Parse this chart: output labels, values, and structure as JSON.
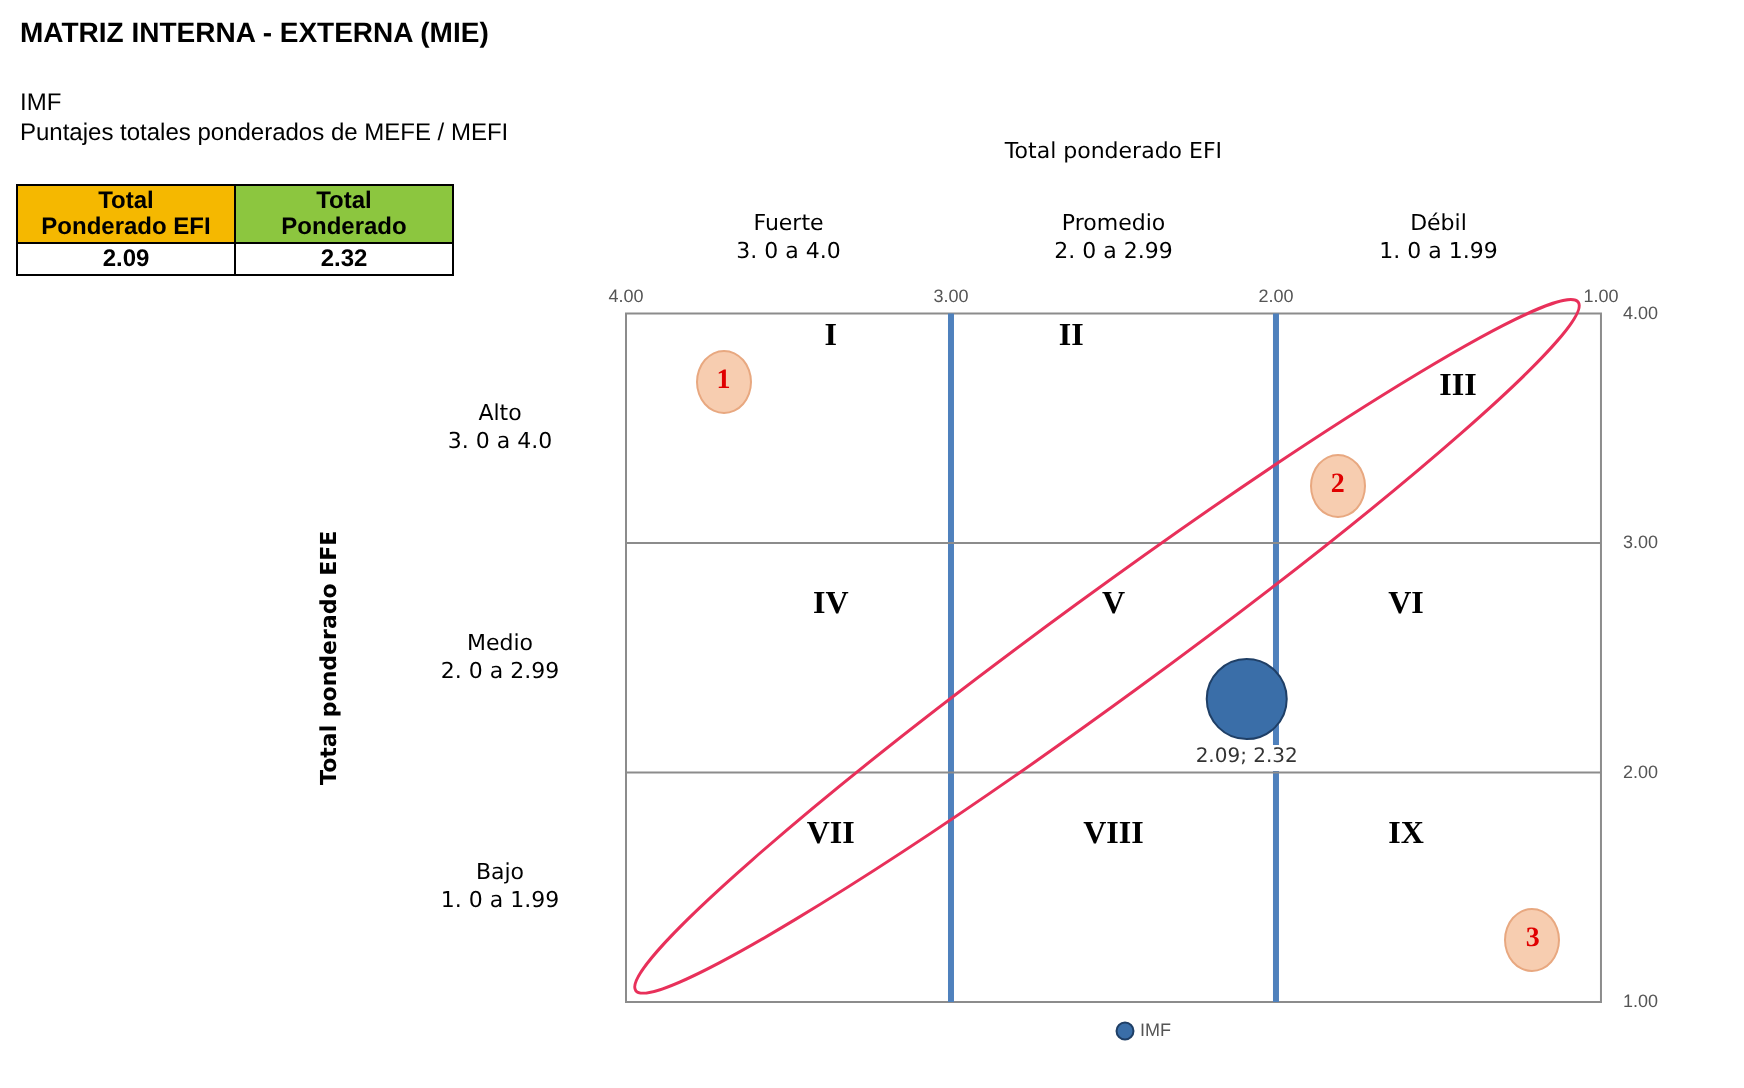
{
  "chart_data": {
    "type": "bubble",
    "title": "MATRIZ INTERNA - EXTERNA (MIE)",
    "subtitle": "IMF\nPuntajes totales ponderados de MEFE / MEFI",
    "series": [
      {
        "name": "IMF",
        "color": "#3a6ea8",
        "x": [
          2.09
        ],
        "values": [
          2.32
        ],
        "sizes": [
          1
        ],
        "value_labels": [
          "2.09; 2.32"
        ]
      }
    ],
    "xlim": [
      4,
      1
    ],
    "xticks": [
      {
        "value": 4,
        "label": "4.00"
      },
      {
        "value": 3,
        "label": "3.00"
      },
      {
        "value": 2,
        "label": "2.00"
      },
      {
        "value": 1,
        "label": "1.00"
      }
    ],
    "ylim": [
      1,
      4
    ],
    "yticks": [
      {
        "value": 1,
        "label": "1.00"
      },
      {
        "value": 2,
        "label": "2.00"
      },
      {
        "value": 3,
        "label": "3.00"
      },
      {
        "value": 4,
        "label": "4.00"
      }
    ],
    "ref_lines": [
      {
        "axis": "x",
        "value": 3,
        "color": "#4f81bd"
      },
      {
        "axis": "x",
        "value": 2,
        "color": "#4f81bd"
      },
      {
        "axis": "y",
        "value": 3,
        "color": "#8c8c8c"
      },
      {
        "axis": "y",
        "value": 2,
        "color": "#8c8c8c"
      }
    ],
    "annotations": [
      "I",
      "II",
      "III",
      "IV",
      "V",
      "VI",
      "VII",
      "VIII",
      "IX",
      "1",
      "2",
      "3",
      "Fuerte\n3. 0 a 4.0",
      "Promedio\n2. 0 a 2.99",
      "Débil\n1. 0 a 1.99",
      "Alto\n3. 0 a 4.0",
      "Medio\n2. 0 a 2.99",
      "Bajo\n1. 0 a 1.99",
      "Total\nPonderado EFI",
      "Total\nPonderado",
      "2.09",
      "2.32",
      "Total ponderado EFI",
      "Total ponderado EFE"
    ],
    "grid": false,
    "legend": "bottom",
    "marker": "circle"
  }
}
